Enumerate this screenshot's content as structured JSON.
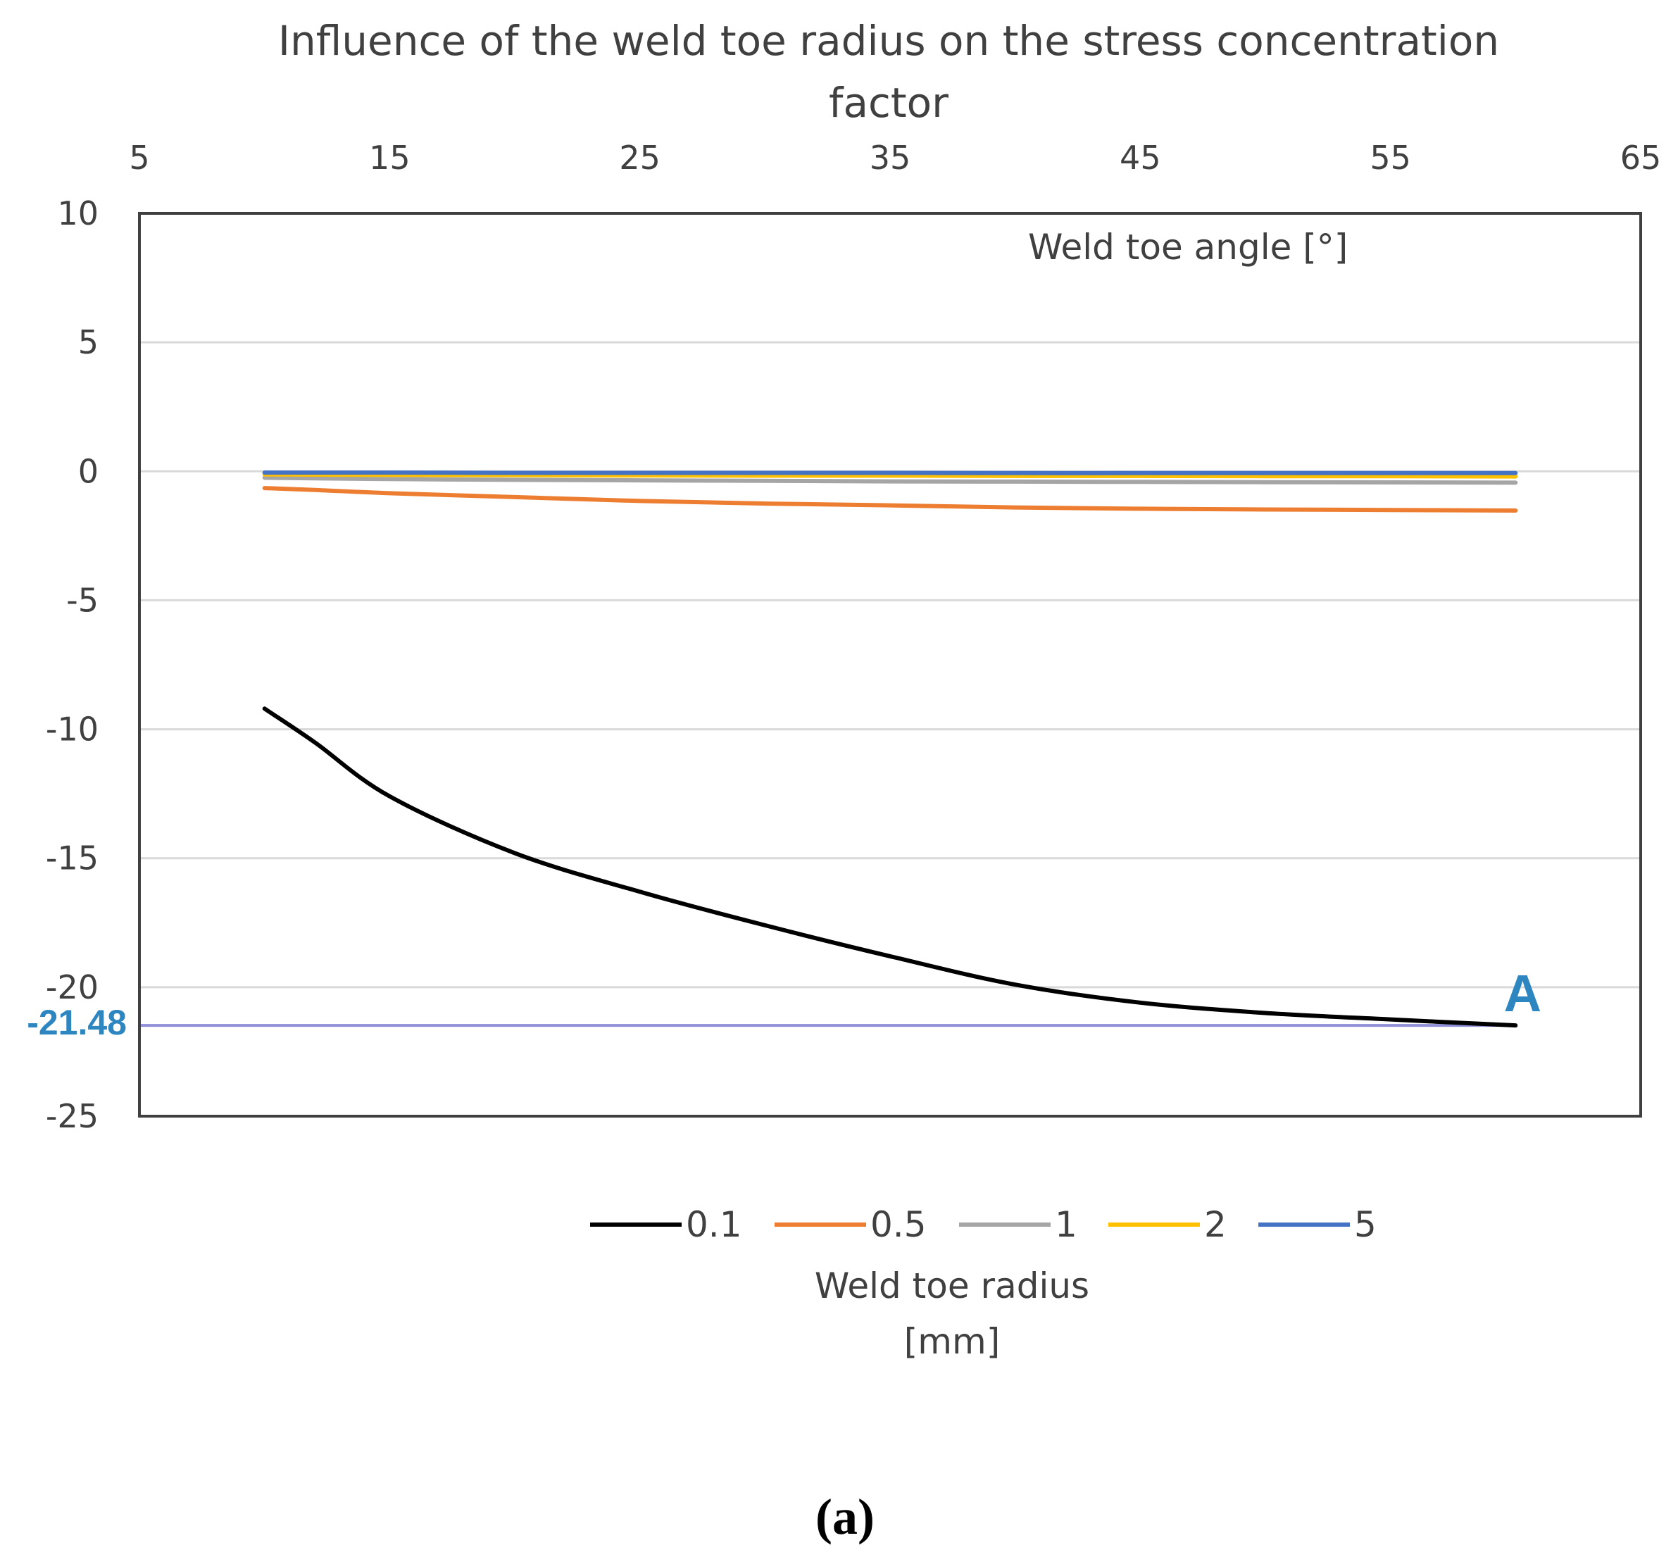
{
  "caption": "(a)",
  "chart_data": {
    "type": "line",
    "title_lines": [
      "Influence of the weld toe radius on the stress concentration",
      "factor"
    ],
    "xlabel": "Weld toe angle [°]",
    "ylabel": "",
    "xlim": [
      5,
      65
    ],
    "ylim": [
      -25,
      10
    ],
    "x_ticks": [
      "5",
      "15",
      "25",
      "35",
      "45",
      "55",
      "65"
    ],
    "y_ticks": [
      "10",
      "5",
      "0",
      "-5",
      "-10",
      "-15",
      "-20",
      "-25"
    ],
    "x_tick_values": [
      5,
      15,
      25,
      35,
      45,
      55,
      65
    ],
    "y_tick_values": [
      10,
      5,
      0,
      -5,
      -10,
      -15,
      -20,
      -25
    ],
    "x_axis_position": "top",
    "grid": true,
    "legend_title_lines": [
      "Weld toe radius",
      "[mm]"
    ],
    "legend_position": "bottom",
    "x": [
      10,
      12,
      15,
      20,
      25,
      30,
      35,
      40,
      45,
      50,
      55,
      60
    ],
    "series": [
      {
        "name": "0.1",
        "color": "#000000",
        "values": [
          -9.2,
          -10.5,
          -12.6,
          -14.8,
          -16.3,
          -17.6,
          -18.8,
          -19.9,
          -20.6,
          -21.0,
          -21.25,
          -21.48
        ]
      },
      {
        "name": "0.5",
        "color": "#ED7D31",
        "values": [
          -0.65,
          -0.72,
          -0.85,
          -1.0,
          -1.15,
          -1.25,
          -1.32,
          -1.4,
          -1.45,
          -1.48,
          -1.5,
          -1.52
        ]
      },
      {
        "name": "1",
        "color": "#A5A5A5",
        "values": [
          -0.25,
          -0.27,
          -0.3,
          -0.33,
          -0.35,
          -0.37,
          -0.39,
          -0.4,
          -0.41,
          -0.42,
          -0.43,
          -0.44
        ]
      },
      {
        "name": "2",
        "color": "#FFC000",
        "values": [
          -0.12,
          -0.13,
          -0.14,
          -0.15,
          -0.16,
          -0.17,
          -0.17,
          -0.18,
          -0.18,
          -0.19,
          -0.19,
          -0.2
        ]
      },
      {
        "name": "5",
        "color": "#4472C4",
        "values": [
          -0.05,
          -0.05,
          -0.05,
          -0.06,
          -0.06,
          -0.06,
          -0.06,
          -0.07,
          -0.07,
          -0.07,
          -0.07,
          -0.07
        ]
      }
    ],
    "reference_line": {
      "value": -21.48,
      "label": "-21.48",
      "color": "#8F8FD8",
      "label_color": "#2E86C1"
    },
    "point_annotation": {
      "label": "A",
      "x": 60,
      "y": -21.48,
      "color": "#2E86C1"
    }
  }
}
